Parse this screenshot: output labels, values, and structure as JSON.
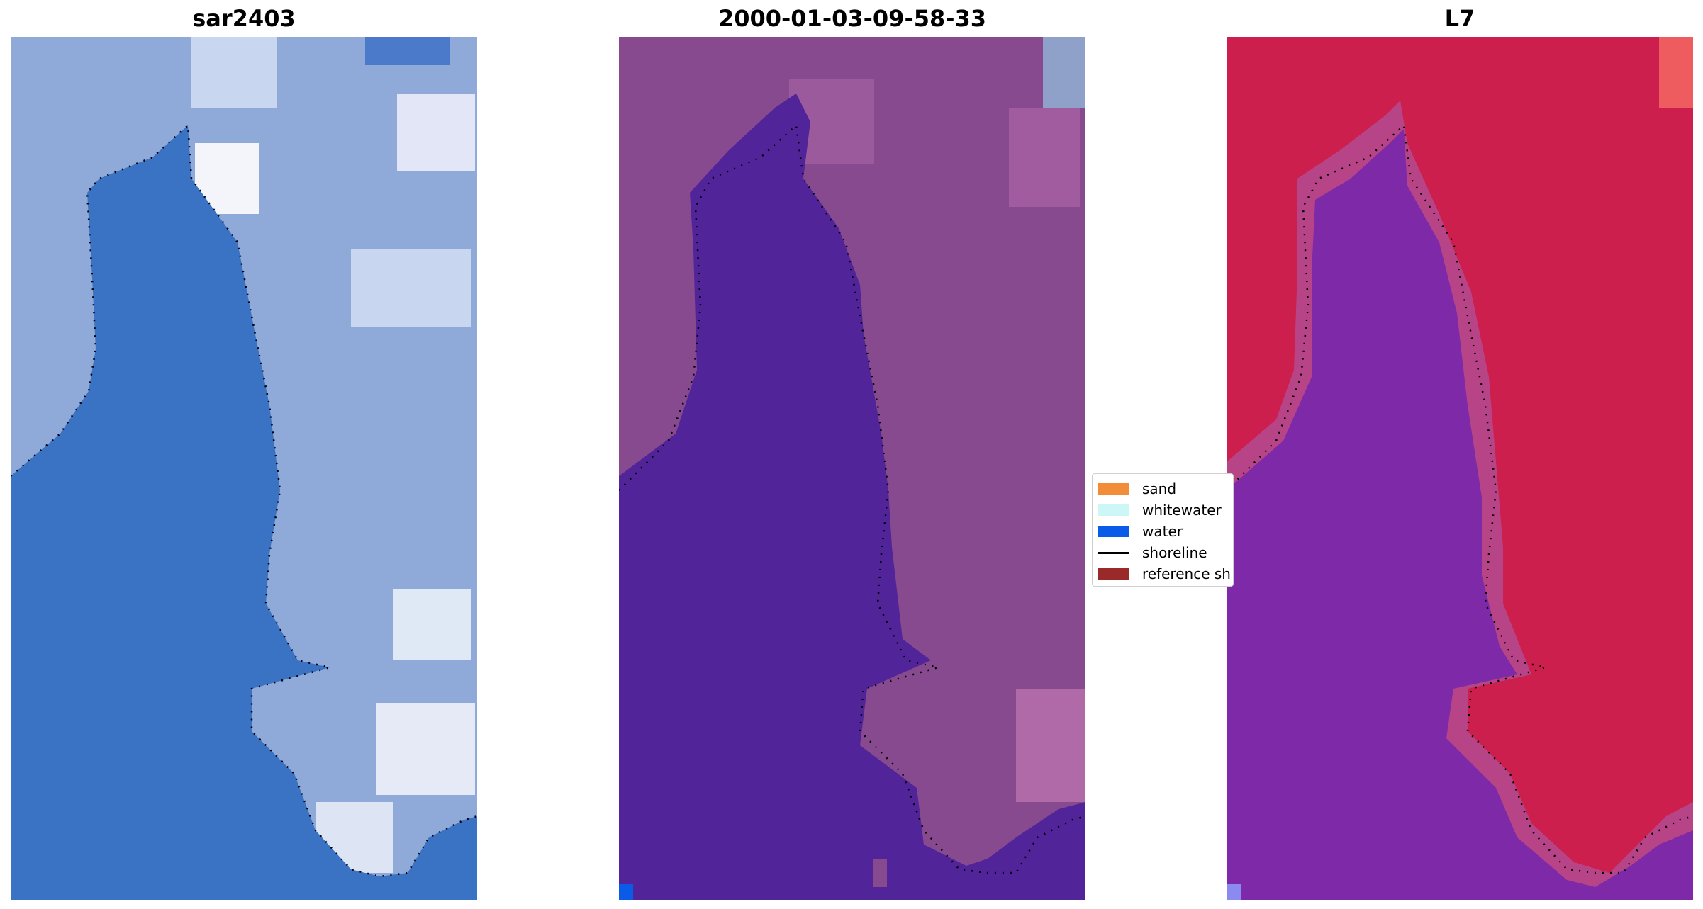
{
  "panels": [
    {
      "title": "sar2403"
    },
    {
      "title": "2000-01-03-09-58-33"
    },
    {
      "title": "L7"
    }
  ],
  "legend": {
    "items": [
      {
        "label": "sand",
        "type": "patch",
        "color": "#f28c38"
      },
      {
        "label": "whitewater",
        "type": "patch",
        "color": "#ccf7f6"
      },
      {
        "label": "water",
        "type": "patch",
        "color": "#0a5be8"
      },
      {
        "label": "shoreline",
        "type": "line",
        "color": "#000000"
      },
      {
        "label": "reference sh",
        "type": "patch",
        "color": "#9a2a2a"
      }
    ]
  },
  "colors": {
    "panel1_water": "#3a72c4",
    "panel1_land": "#8fa9d8",
    "panel2_water": "#52249a",
    "panel2_land": "#874a8f",
    "panel3_water": "#7e2aa8",
    "panel3_land": "#cc1f4d",
    "shoreline_dots": "#000000"
  }
}
